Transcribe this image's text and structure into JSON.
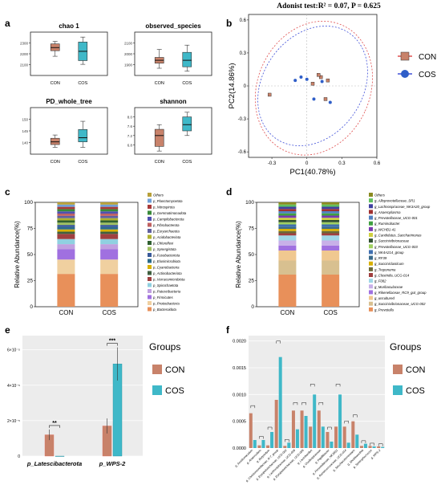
{
  "colors": {
    "con": "#c8826a",
    "cos": "#3fb8c8",
    "con_dark": "#b0553f",
    "cos_dark": "#2f5ec8",
    "pc_con_ellipse": "#e05050",
    "pc_cos_ellipse": "#4050d8"
  },
  "panels": {
    "a": "a",
    "b": "b",
    "c": "c",
    "d": "d",
    "e": "e",
    "f": "f"
  },
  "chart_data": [
    {
      "panel": "a",
      "type": "box",
      "title": "chao 1",
      "categories": [
        "CON",
        "COS"
      ],
      "yticks": [
        "2100",
        "2200",
        "2300"
      ],
      "ylim": [
        2050,
        2400
      ],
      "boxes": [
        {
          "group": "CON",
          "whisker_low": 2205,
          "q1": 2250,
          "median": 2275,
          "q3": 2305,
          "whisker_high": 2325
        },
        {
          "group": "COS",
          "whisker_low": 2140,
          "q1": 2170,
          "median": 2245,
          "q3": 2320,
          "whisker_high": 2360
        }
      ]
    },
    {
      "panel": "a",
      "type": "box",
      "title": "observed_species",
      "categories": [
        "CON",
        "COS"
      ],
      "yticks": [
        "1900",
        "2000",
        "2100"
      ],
      "ylim": [
        1850,
        2150
      ],
      "boxes": [
        {
          "group": "CON",
          "whisker_low": 1900,
          "q1": 1935,
          "median": 1955,
          "q3": 1975,
          "whisker_high": 2030
        },
        {
          "group": "COS",
          "whisker_low": 1880,
          "q1": 1910,
          "median": 1955,
          "q3": 2010,
          "whisker_high": 2060
        }
      ]
    },
    {
      "panel": "a",
      "type": "box",
      "title": "PD_whole_tree",
      "categories": [
        "CON",
        "COS"
      ],
      "yticks": [
        "140",
        "145",
        "150"
      ],
      "ylim": [
        136,
        153
      ],
      "boxes": [
        {
          "group": "CON",
          "whisker_low": 138.5,
          "q1": 139.5,
          "median": 140.5,
          "q3": 141.8,
          "whisker_high": 143
        },
        {
          "group": "COS",
          "whisker_low": 138.5,
          "q1": 140.5,
          "median": 142,
          "q3": 145,
          "whisker_high": 148
        }
      ]
    },
    {
      "panel": "a",
      "type": "box",
      "title": "shannon",
      "categories": [
        "CON",
        "COS"
      ],
      "yticks": [
        "6.8",
        "7.2",
        "7.6",
        "8.0"
      ],
      "ylim": [
        6.7,
        8.2
      ],
      "boxes": [
        {
          "group": "CON",
          "whisker_low": 6.8,
          "q1": 6.95,
          "median": 7.3,
          "q3": 7.5,
          "whisker_high": 7.65
        },
        {
          "group": "COS",
          "whisker_low": 7.3,
          "q1": 7.45,
          "median": 7.65,
          "q3": 7.9,
          "whisker_high": 8.05
        }
      ]
    },
    {
      "panel": "b",
      "type": "scatter",
      "title": "Adonist test:R² = 0.07, P = 0.625",
      "xlabel": "PC1(40.78%)",
      "ylabel": "PC2(14.86%)",
      "xticks": [
        "-0.3",
        "0",
        "0.3",
        "0.6"
      ],
      "yticks": [
        "-0.6",
        "-0.3",
        "0",
        "0.3",
        "0.6"
      ],
      "xlim": [
        -0.5,
        0.6
      ],
      "ylim": [
        -0.65,
        0.65
      ],
      "legend": [
        "CON",
        "COS"
      ],
      "series": [
        {
          "name": "CON",
          "points": [
            [
              0.12,
              0.08
            ],
            [
              0.18,
              0.05
            ],
            [
              0.05,
              0.02
            ],
            [
              -0.32,
              -0.08
            ],
            [
              0.1,
              0.1
            ],
            [
              0.16,
              -0.12
            ]
          ]
        },
        {
          "name": "COS",
          "points": [
            [
              -0.05,
              0.08
            ],
            [
              0.0,
              0.06
            ],
            [
              0.06,
              -0.12
            ],
            [
              0.2,
              -0.15
            ],
            [
              -0.1,
              0.05
            ],
            [
              0.13,
              0.04
            ]
          ]
        }
      ]
    },
    {
      "panel": "c",
      "type": "stacked_bar",
      "ylabel": "Relative Abundance(%)",
      "categories": [
        "CON",
        "COS"
      ],
      "yticks": [
        "0",
        "25",
        "50",
        "75",
        "100"
      ],
      "legend": [
        "Others",
        "p_Planctomycetota",
        "p_Nitrospirota",
        "p_Gemmatimonadota",
        "p_Campilobacterota",
        "p_Fibrobacterota",
        "p_Euryarchaeota",
        "p_Acidobacteriota",
        "p_Chloroflexi",
        "p_Synergistota",
        "p_Fusobacteriota",
        "p_Elusimicrobiota",
        "p_Cyanobacteria",
        "p_Actinobacteriota",
        "p_Verrucomicrobiota",
        "p_Spirochaetota",
        "p_Patescibacteria",
        "p_Firmicutes",
        "p_Proteobacteria",
        "p_Bacteroidota"
      ],
      "legend_colors": [
        "#b8a03a",
        "#6fa0d8",
        "#a83a3a",
        "#3a8a3a",
        "#5050b0",
        "#c06060",
        "#6060a0",
        "#b0b030",
        "#306030",
        "#a0c060",
        "#3a5a9a",
        "#2a6a8a",
        "#d8b000",
        "#406040",
        "#a04040",
        "#90d0e0",
        "#c0a0e0",
        "#a070e0",
        "#f0d0a0",
        "#e8905a"
      ]
    },
    {
      "panel": "d",
      "type": "stacked_bar",
      "ylabel": "Relative Abundance(%)",
      "categories": [
        "CON",
        "COS"
      ],
      "yticks": [
        "0",
        "25",
        "50",
        "75",
        "100"
      ],
      "legend": [
        "Others",
        "g_Alloprevotellaceae_SR1",
        "g_Lachnospiraceae_NK3A20_group",
        "g_Anaeroplasma",
        "g_Prevotellaceae_UCG-001",
        "g_Ruminobacter",
        "g_WCHB1-41",
        "g_Candidatus_Saccharimonas",
        "g_Succinivibrionaceae",
        "g_Prevotellaceae_UCG-003",
        "g_NK4A214_group",
        "g_RF39",
        "g_Succiniclasticum",
        "g_Treponema",
        "g_Clostridia_UCG-014",
        "g_F082",
        "g_Muribaculaceae",
        "g_Rikenellaceae_RC9_gut_group",
        "g_uncultured",
        "g_Succinivibrionaceae_UCG-002",
        "g_Prevotella"
      ],
      "legend_colors": [
        "#8a8a20",
        "#60c060",
        "#4040a0",
        "#a03030",
        "#5080c0",
        "#40a040",
        "#7a3ab0",
        "#d0d040",
        "#305030",
        "#a0d060",
        "#4070b0",
        "#3a6a8a",
        "#d8b000",
        "#6a6a3a",
        "#a04040",
        "#a0d8e8",
        "#c8b0e8",
        "#a070e0",
        "#f0c890",
        "#d8c090",
        "#e8905a"
      ]
    },
    {
      "panel": "e",
      "type": "bar",
      "categories": [
        "p_Latescibacterota",
        "p_WPS-2"
      ],
      "yticks": [
        "0",
        "2×10⁻⁵",
        "4×10⁻⁵",
        "6×10⁻⁵"
      ],
      "ylim": [
        0,
        6.8e-05
      ],
      "legend_title": "Groups",
      "legend": [
        "CON",
        "COS"
      ],
      "series": [
        {
          "name": "CON",
          "values": [
            1.2e-05,
            1.7e-05
          ]
        },
        {
          "name": "COS",
          "values": [
            0.0,
            5.2e-05
          ]
        }
      ],
      "significance": [
        "**",
        "***"
      ]
    },
    {
      "panel": "f",
      "type": "bar",
      "yticks": [
        "0.0000",
        "0.0005",
        "0.0010",
        "0.0015",
        "0.0020"
      ],
      "ylim": [
        0,
        0.0021
      ],
      "legend_title": "Groups",
      "legend": [
        "CON",
        "COS"
      ],
      "categories": [
        "g_Acetitomaculum",
        "g_Anaerovibrio",
        "g_Butyrivibrio",
        "g_Christensenellaceae_R-7_group",
        "g_Erysipelotrichaceae_UCG-002",
        "g_Lachnospiraceae_UCG-006",
        "g_Erysipelotrichaceae_UCG-006",
        "g_Lactobacillus",
        "g_Oscillospiraceae",
        "g_Papillibacter",
        "g_Prevotellaceae_NK3B31",
        "g_Ruminococcaceae_UCG-014",
        "g_Saccharofermentans",
        "g_Shuttleworthia",
        "g_Syntrophococcus",
        "g_WPS-2"
      ],
      "series": [
        {
          "name": "CON",
          "values": [
            0.00065,
            5e-05,
            5e-05,
            0.0009,
            4e-05,
            0.0007,
            0.0007,
            0.0004,
            0.0007,
            0.0003,
            0.0004,
            0.0004,
            0.0005,
            4e-05,
            4e-05,
            3e-05
          ]
        },
        {
          "name": "COS",
          "values": [
            0.00015,
            0.00015,
            0.0003,
            0.0017,
            0.0001,
            0.00035,
            0.0006,
            0.001,
            0.0004,
            0.00012,
            0.001,
            0.0001,
            0.00025,
            8e-05,
            3e-05,
            2e-05
          ]
        }
      ]
    }
  ]
}
